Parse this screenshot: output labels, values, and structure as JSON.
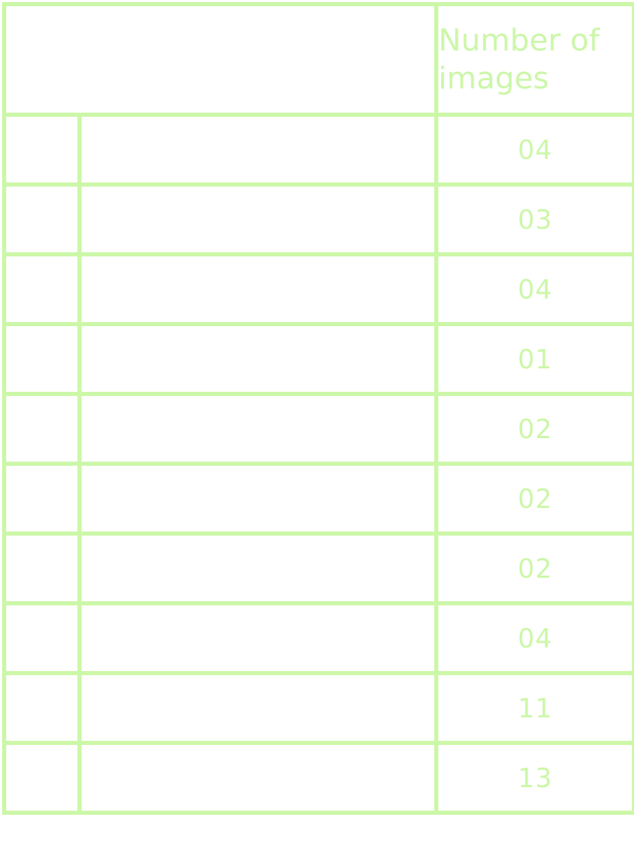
{
  "table": {
    "header": {
      "count_label": "Number of images"
    },
    "rows": [
      {
        "count": "04"
      },
      {
        "count": "03"
      },
      {
        "count": "04"
      },
      {
        "count": "01"
      },
      {
        "count": "02"
      },
      {
        "count": "02"
      },
      {
        "count": "02"
      },
      {
        "count": "04"
      },
      {
        "count": "11"
      },
      {
        "count": "13"
      }
    ]
  },
  "colors": {
    "border": "#ccf7a8",
    "text": "#ccf7a8",
    "background": "#ffffff"
  }
}
